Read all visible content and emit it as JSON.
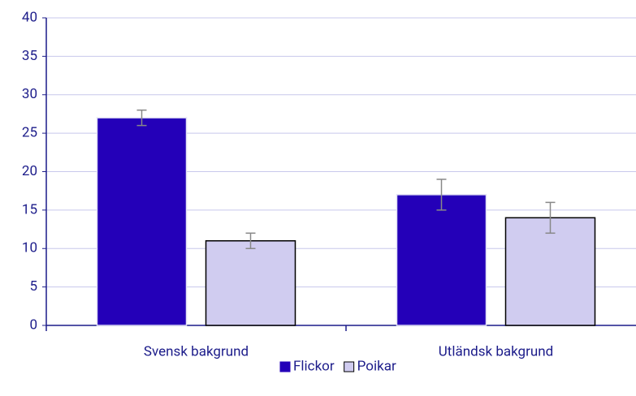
{
  "chart_data": {
    "type": "bar",
    "categories": [
      "Svensk bakgrund",
      "Utländsk bakgrund"
    ],
    "series": [
      {
        "name": "Flickor",
        "color": "#2400b8",
        "values": [
          27,
          17
        ],
        "errors": [
          1,
          2
        ]
      },
      {
        "name": "Poikar",
        "color": "#d0ccf0",
        "values": [
          11,
          14
        ],
        "errors": [
          1,
          2
        ]
      }
    ],
    "ylim": [
      0,
      40
    ],
    "yticks": [
      0,
      5,
      10,
      15,
      20,
      25,
      30,
      35,
      40
    ],
    "grid": true,
    "legend": "bottom"
  }
}
